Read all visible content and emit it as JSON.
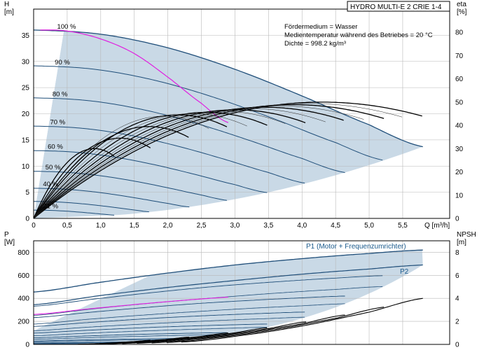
{
  "chart_data": [
    {
      "type": "line",
      "title": "HYDRO MULTI-E 2 CRIE 1-4",
      "xlabel": "Q [m³/h]",
      "ylabel": "H\n[m]",
      "ylabel_top": "H",
      "ylabel_unit": "[m]",
      "y2label_top": "eta",
      "y2label_unit": "[%]",
      "xlim": [
        0,
        6.2
      ],
      "ylim": [
        0,
        40
      ],
      "y2lim": [
        0,
        90
      ],
      "x_ticks": [
        "0",
        "0,5",
        "1,0",
        "1,5",
        "2,0",
        "2,5",
        "3,0",
        "3,5",
        "4,0",
        "4,5",
        "5,0",
        "5,5"
      ],
      "x_tick_values": [
        0,
        0.5,
        1.0,
        1.5,
        2.0,
        2.5,
        3.0,
        3.5,
        4.0,
        4.5,
        5.0,
        5.5
      ],
      "y_ticks": [
        "0",
        "5",
        "10",
        "15",
        "20",
        "25",
        "30",
        "35"
      ],
      "y_tick_values": [
        0,
        5,
        10,
        15,
        20,
        25,
        30,
        35
      ],
      "y2_ticks": [
        "0",
        "10",
        "20",
        "30",
        "40",
        "50",
        "60",
        "70",
        "80"
      ],
      "y2_tick_values": [
        0,
        10,
        20,
        30,
        40,
        50,
        60,
        70,
        80
      ],
      "annotations": [
        "Fördermedium = Wasser",
        "Medientemperatur während des Betriebes = 20 °C",
        "Dichte = 998.2 kg/m³"
      ],
      "speed_labels": [
        "100 %",
        "90 %",
        "80 %",
        "70 %",
        "60 %",
        "50 %",
        "40 %",
        "21 %"
      ],
      "speed_fractions": [
        1.0,
        0.9,
        0.8,
        0.7,
        0.6,
        0.5,
        0.4,
        0.21
      ],
      "head_curve_100": {
        "x": [
          0,
          1,
          2,
          3,
          4,
          5,
          5.8
        ],
        "y": [
          36,
          35.2,
          32.6,
          28.5,
          23.4,
          17.9,
          13.7
        ]
      },
      "head_curve_max_power": {
        "x": [
          0.1,
          0.5,
          1.0,
          1.5,
          2.0,
          2.5,
          2.9
        ],
        "y": [
          36,
          35.8,
          34.3,
          31.5,
          27.0,
          22.0,
          18.3
        ]
      },
      "max_efficiency_pct": 50,
      "efficiency_peak_flow_at_100": 4.3,
      "shaded_region": "operating range",
      "colors": {
        "head": "#1f4e79",
        "max_power": "#e020e0",
        "efficiency": "#000000",
        "region": "#c9d9e6"
      }
    },
    {
      "type": "line",
      "xlabel": "",
      "ylabel_top": "P",
      "ylabel_unit": "[W]",
      "y2label_top": "NPSH",
      "y2label_unit": "[m]",
      "xlim": [
        0,
        6.2
      ],
      "ylim": [
        0,
        900
      ],
      "y2lim": [
        0,
        9
      ],
      "y_ticks": [
        "0",
        "200",
        "400",
        "600",
        "800"
      ],
      "y_tick_values": [
        0,
        200,
        400,
        600,
        800
      ],
      "y2_ticks": [
        "0",
        "2",
        "4",
        "6",
        "8"
      ],
      "y2_tick_values": [
        0,
        2,
        4,
        6,
        8
      ],
      "series": [
        {
          "name": "P1 (Motor + Frequenzumrichter)",
          "x": [
            0,
            1,
            2,
            3,
            4,
            5,
            5.8
          ],
          "y": [
            455,
            540,
            620,
            690,
            745,
            790,
            820
          ]
        },
        {
          "name": "P2",
          "x": [
            0,
            1,
            2,
            3,
            4,
            5,
            5.8
          ],
          "y": [
            345,
            425,
            495,
            555,
            610,
            655,
            690
          ]
        }
      ],
      "npsh_100": {
        "x": [
          2.2,
          3,
          4,
          5,
          5.8
        ],
        "y": [
          0.2,
          0.7,
          1.6,
          2.8,
          4.0
        ]
      },
      "colors": {
        "p1": "#1f4e79",
        "p2": "#1f4e79",
        "npsh": "#000000",
        "max_power": "#e020e0",
        "region": "#c9d9e6"
      }
    }
  ]
}
